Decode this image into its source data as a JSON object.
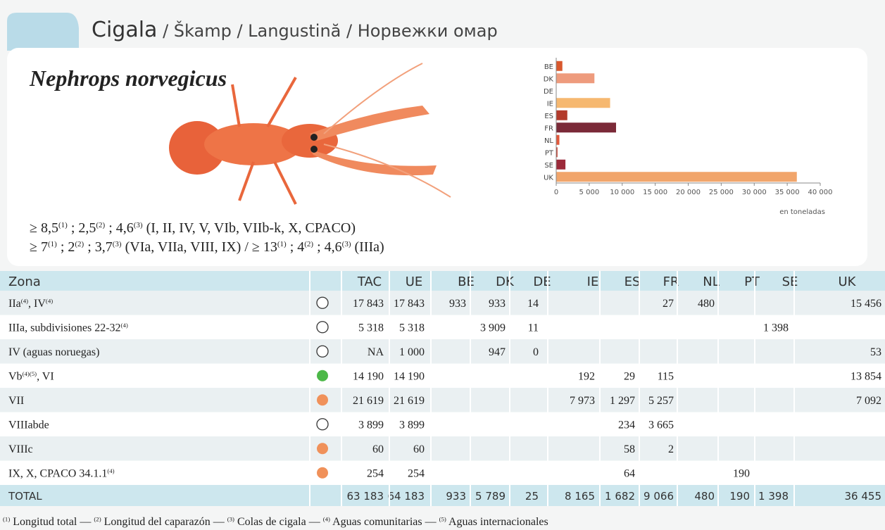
{
  "header": {
    "title": "Cigala",
    "subtitle": " / Škamp / Langustină / Норвежки омар"
  },
  "species": "Nephrops norvegicus",
  "sizes": [
    [
      {
        "text": "≥ 8,5"
      },
      {
        "sup": "(1)"
      },
      {
        "text": " ; 2,5"
      },
      {
        "sup": "(2)"
      },
      {
        "text": " ; 4,6"
      },
      {
        "sup": "(3)"
      },
      {
        "text": " (I, II, IV, V, VIb, VIIb-k, X, CPACO)"
      }
    ],
    [
      {
        "text": "≥ 7"
      },
      {
        "sup": "(1)"
      },
      {
        "text": " ; 2"
      },
      {
        "sup": "(2)"
      },
      {
        "text": " ; 3,7"
      },
      {
        "sup": "(3)"
      },
      {
        "text": " (VIa, VIIa, VIII, IX) / ≥ 13"
      },
      {
        "sup": "(1)"
      },
      {
        "text": " ; 4"
      },
      {
        "sup": "(2)"
      },
      {
        "text": " ; 4,6"
      },
      {
        "sup": "(3)"
      },
      {
        "text": " (IIIa)"
      }
    ]
  ],
  "chart_data": {
    "type": "bar",
    "orientation": "horizontal",
    "categories": [
      "BE",
      "DK",
      "DE",
      "IE",
      "ES",
      "FR",
      "NL",
      "PT",
      "SE",
      "UK"
    ],
    "values": [
      933,
      5789,
      25,
      8165,
      1682,
      9066,
      480,
      190,
      1398,
      36455
    ],
    "colors": [
      "#d9582d",
      "#ee9b7d",
      "#6fb3b8",
      "#f6b870",
      "#b33b2c",
      "#7b2a38",
      "#e2593b",
      "#c43a2a",
      "#9c2a3a",
      "#f1a56b"
    ],
    "xlim": [
      0,
      40000
    ],
    "xticks": [
      0,
      {
        "value": 5000,
        "label": "5 000"
      },
      {
        "value": 10000,
        "label": "10 000"
      },
      {
        "value": 15000,
        "label": "15 000"
      },
      {
        "value": 20000,
        "label": "20 000"
      },
      {
        "value": 25000,
        "label": "25 000"
      },
      {
        "value": 30000,
        "label": "30 000"
      },
      {
        "value": 35000,
        "label": "35 000"
      },
      {
        "value": 40000,
        "label": "40 000"
      }
    ],
    "x_label": "en toneladas"
  },
  "table": {
    "columns": [
      "Zona",
      "TAC",
      "UE",
      "BE",
      "DK",
      "DE",
      "IE",
      "ES",
      "FR",
      "NL",
      "PT",
      "SE",
      "UK"
    ],
    "rows": [
      {
        "zone": [
          {
            "text": "IIa"
          },
          {
            "sup": "(4)"
          },
          {
            "text": ", IV"
          },
          {
            "sup": "(4)"
          }
        ],
        "marker_color": null,
        "cells": [
          "17 843",
          "17 843",
          "933",
          "933",
          "14",
          null,
          null,
          "27",
          "480",
          null,
          null,
          "15 456"
        ]
      },
      {
        "zone": [
          {
            "text": "IIIa, subdivisiones 22-32"
          },
          {
            "sup": "(4)"
          }
        ],
        "marker_color": null,
        "cells": [
          "5 318",
          "5 318",
          null,
          "3 909",
          "11",
          null,
          null,
          null,
          null,
          null,
          "1 398",
          null
        ]
      },
      {
        "zone": [
          {
            "text": "IV (aguas noruegas)"
          }
        ],
        "marker_color": null,
        "cells": [
          "NA",
          "1 000",
          null,
          "947",
          "0",
          null,
          null,
          null,
          null,
          null,
          null,
          "53"
        ]
      },
      {
        "zone": [
          {
            "text": "Vb"
          },
          {
            "sup": "(4)(5)"
          },
          {
            "text": ", VI"
          }
        ],
        "marker_color": "#4cb848",
        "cells": [
          "14 190",
          "14 190",
          null,
          null,
          null,
          "192",
          "29",
          "115",
          null,
          null,
          null,
          "13 854"
        ]
      },
      {
        "zone": [
          {
            "text": "VII"
          }
        ],
        "marker_color": "#f0915a",
        "cells": [
          "21 619",
          "21 619",
          null,
          null,
          null,
          "7 973",
          "1 297",
          "5 257",
          null,
          null,
          null,
          "7 092"
        ]
      },
      {
        "zone": [
          {
            "text": "VIIIabde"
          }
        ],
        "marker_color": null,
        "cells": [
          "3 899",
          "3 899",
          null,
          null,
          null,
          null,
          "234",
          "3 665",
          null,
          null,
          null,
          null
        ]
      },
      {
        "zone": [
          {
            "text": "VIIIc"
          }
        ],
        "marker_color": "#f0915a",
        "cells": [
          "60",
          "60",
          null,
          null,
          null,
          null,
          "58",
          "2",
          null,
          null,
          null,
          null
        ]
      },
      {
        "zone": [
          {
            "text": "IX, X, CPACO 34.1.1"
          },
          {
            "sup": "(4)"
          }
        ],
        "marker_color": "#f0915a",
        "cells": [
          "254",
          "254",
          null,
          null,
          null,
          null,
          "64",
          null,
          null,
          "190",
          null,
          null
        ]
      }
    ],
    "total": {
      "label": "TOTAL",
      "cells": [
        "63 183",
        "64 183",
        "933",
        "5 789",
        "25",
        "8 165",
        "1 682",
        "9 066",
        "480",
        "190",
        "1 398",
        "36 455"
      ]
    }
  },
  "footnote": [
    {
      "sup": "(1)"
    },
    {
      "text": " Longitud total — "
    },
    {
      "sup": "(2)"
    },
    {
      "text": " Longitud del caparazón — "
    },
    {
      "sup": "(3)"
    },
    {
      "text": " Colas de cigala — "
    },
    {
      "sup": "(4)"
    },
    {
      "text": " Aguas comunitarias — "
    },
    {
      "sup": "(5)"
    },
    {
      "text": " Aguas internacionales"
    }
  ]
}
